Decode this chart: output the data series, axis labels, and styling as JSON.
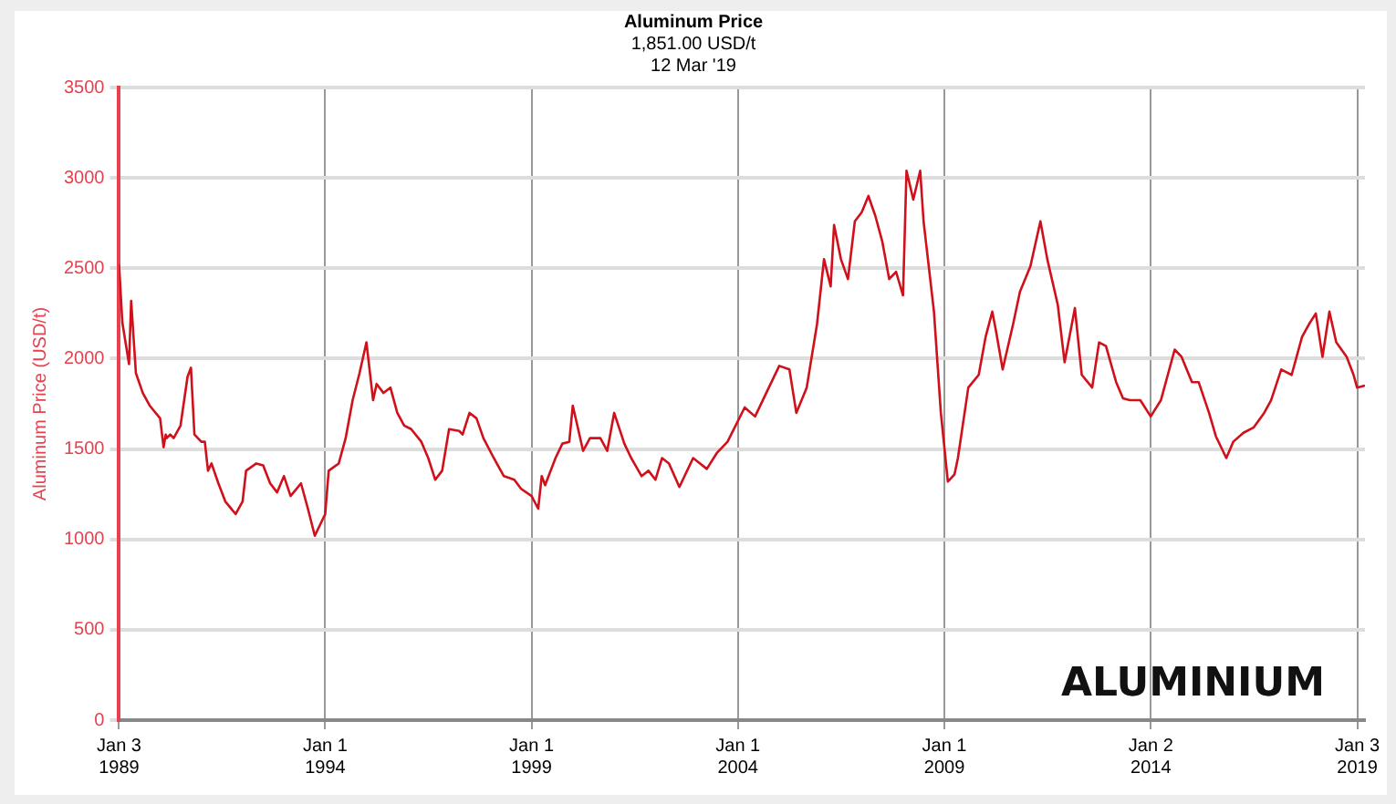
{
  "chart_data": {
    "type": "line",
    "title": "Aluminum Price",
    "subtitle": "1,851.00 USD/t\n12 Mar '19",
    "ylabel": "Aluminum Price (USD/t)",
    "x": [
      "1989-01-03",
      "1989-02",
      "1989-04",
      "1989-04-20",
      "1989-06",
      "1989-08",
      "1989-10",
      "1990-01",
      "1990-02",
      "1990-02-20",
      "1990-03",
      "1990-04",
      "1990-05",
      "1990-07",
      "1990-09",
      "1990-10",
      "1990-11",
      "1991-01",
      "1991-02",
      "1991-03",
      "1991-04",
      "1991-06",
      "1991-08",
      "1991-11",
      "1992-01",
      "1992-02",
      "1992-05",
      "1992-07",
      "1992-09",
      "1992-11",
      "1993-01",
      "1993-03",
      "1993-06",
      "1993-08",
      "1993-10",
      "1994-01",
      "1994-02",
      "1994-05",
      "1994-07",
      "1994-09",
      "1994-11",
      "1995-01",
      "1995-03",
      "1995-04",
      "1995-06",
      "1995-08",
      "1995-10",
      "1995-12",
      "1996-02",
      "1996-05",
      "1996-07",
      "1996-09",
      "1996-11",
      "1997-01",
      "1997-04",
      "1997-05",
      "1997-07",
      "1997-09",
      "1997-11",
      "1998-02",
      "1998-05",
      "1998-08",
      "1998-10",
      "1999-01",
      "1999-03",
      "1999-04",
      "1999-05",
      "1999-08",
      "1999-10",
      "1999-12",
      "2000-01",
      "2000-04",
      "2000-06",
      "2000-09",
      "2000-11",
      "2001-01",
      "2001-04",
      "2001-06",
      "2001-09",
      "2001-11",
      "2002-01",
      "2002-03",
      "2002-05",
      "2002-08",
      "2002-12",
      "2003-04",
      "2003-07",
      "2003-10",
      "2004-03",
      "2004-06",
      "2004-10",
      "2005-01",
      "2005-04",
      "2005-06",
      "2005-09",
      "2005-12",
      "2006-02",
      "2006-04",
      "2006-05",
      "2006-07",
      "2006-09",
      "2006-11",
      "2007-01",
      "2007-03",
      "2007-05",
      "2007-07",
      "2007-09",
      "2007-11",
      "2008-01",
      "2008-02",
      "2008-04",
      "2008-06",
      "2008-07",
      "2008-10",
      "2008-12",
      "2009-02",
      "2009-04",
      "2009-05",
      "2009-08",
      "2009-11",
      "2010-01",
      "2010-03",
      "2010-04",
      "2010-06",
      "2010-09",
      "2010-11",
      "2011-02",
      "2011-05",
      "2011-07",
      "2011-10",
      "2011-12",
      "2012-03",
      "2012-05",
      "2012-08",
      "2012-10",
      "2012-12",
      "2013-03",
      "2013-05",
      "2013-07",
      "2013-10",
      "2014-01",
      "2014-04",
      "2014-08",
      "2014-10",
      "2015-01",
      "2015-03",
      "2015-06",
      "2015-08",
      "2015-11",
      "2016-01",
      "2016-04",
      "2016-07",
      "2016-10",
      "2016-12",
      "2017-03",
      "2017-06",
      "2017-09",
      "2017-11",
      "2018-01",
      "2018-03",
      "2018-05",
      "2018-07",
      "2018-10",
      "2018-12",
      "2019-01",
      "2019-03-12"
    ],
    "series": [
      {
        "color": "#d0101a",
        "values": [
          2520,
          2200,
          1970,
          2320,
          1920,
          1810,
          1740,
          1670,
          1510,
          1580,
          1560,
          1580,
          1560,
          1630,
          1900,
          1950,
          1580,
          1540,
          1540,
          1380,
          1420,
          1310,
          1210,
          1140,
          1210,
          1380,
          1420,
          1410,
          1310,
          1260,
          1350,
          1240,
          1310,
          1170,
          1020,
          1140,
          1380,
          1420,
          1560,
          1770,
          1920,
          2090,
          1770,
          1860,
          1810,
          1840,
          1700,
          1630,
          1610,
          1540,
          1450,
          1330,
          1380,
          1610,
          1600,
          1580,
          1700,
          1670,
          1560,
          1450,
          1350,
          1330,
          1280,
          1240,
          1170,
          1350,
          1300,
          1450,
          1530,
          1540,
          1740,
          1490,
          1560,
          1560,
          1490,
          1700,
          1530,
          1450,
          1350,
          1380,
          1330,
          1450,
          1420,
          1290,
          1450,
          1390,
          1480,
          1540,
          1730,
          1680,
          1840,
          1960,
          1940,
          1700,
          1840,
          2190,
          2550,
          2400,
          2740,
          2550,
          2440,
          2760,
          2810,
          2900,
          2790,
          2650,
          2440,
          2480,
          2350,
          3040,
          2880,
          3040,
          2760,
          2260,
          1700,
          1320,
          1360,
          1450,
          1840,
          1910,
          2120,
          2260,
          2160,
          1940,
          2190,
          2370,
          2510,
          2760,
          2550,
          2300,
          1980,
          2280,
          1910,
          1840,
          2090,
          2070,
          1870,
          1780,
          1770,
          1770,
          1680,
          1770,
          2050,
          2010,
          1870,
          1870,
          1700,
          1570,
          1450,
          1540,
          1590,
          1620,
          1700,
          1770,
          1940,
          1910,
          2120,
          2190,
          2250,
          2010,
          2260,
          2090,
          2010,
          1910,
          1840,
          1851
        ]
      }
    ],
    "xlim": [
      "1989-01-03",
      "2019-03-12"
    ],
    "xticks": [
      {
        "value": "1989-01-03",
        "label": "Jan 3 1989"
      },
      {
        "value": "1994-01-01",
        "label": "Jan 1 1994"
      },
      {
        "value": "1999-01-01",
        "label": "Jan 1 1999"
      },
      {
        "value": "2004-01-01",
        "label": "Jan 1 2004"
      },
      {
        "value": "2009-01-01",
        "label": "Jan 1 2009"
      },
      {
        "value": "2014-01-02",
        "label": "Jan 2 2014"
      },
      {
        "value": "2019-01-03",
        "label": "Jan 3 2019"
      }
    ],
    "ylim": [
      0,
      3500
    ],
    "yticks": [
      0,
      500,
      1000,
      1500,
      2000,
      2500,
      3000,
      3500
    ],
    "grid": true,
    "marker": "none",
    "line_style": "solid",
    "legend": false,
    "annotations": [
      "ALUMINIUM"
    ]
  }
}
